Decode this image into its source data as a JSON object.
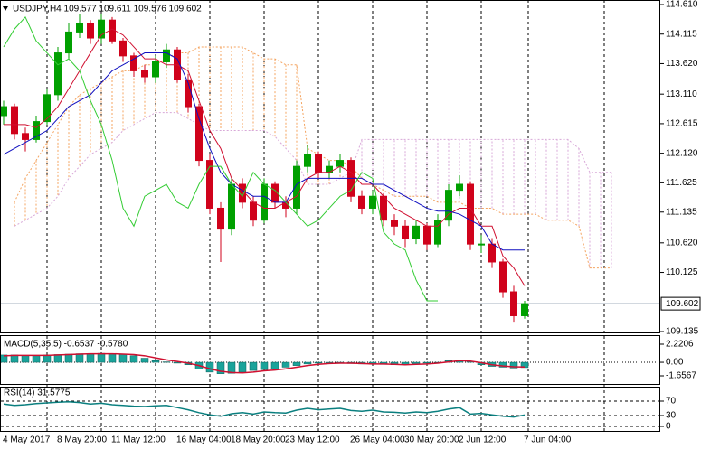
{
  "chart_data": {
    "type": "candlestick",
    "title": "USDJPY,H4  109.577 109.611 109.576 109.602",
    "categories": [
      "4 May 2017",
      null,
      null,
      null,
      null,
      "8 May 20:00",
      null,
      null,
      null,
      null,
      "11 May 12:00",
      null,
      null,
      null,
      null,
      null,
      "16 May 04:00",
      null,
      null,
      null,
      null,
      "18 May 20:00",
      null,
      null,
      null,
      null,
      "23 May 12:00",
      null,
      null,
      null,
      null,
      null,
      "26 May 04:00",
      null,
      null,
      null,
      null,
      "30 May 20:00",
      null,
      null,
      null,
      null,
      "2 Jun 12:00",
      null,
      null,
      null,
      null,
      null,
      "7 Jun 04:00",
      null,
      null,
      null,
      null,
      null,
      null,
      null,
      null
    ],
    "open": [
      112.75,
      112.9,
      112.45,
      112.35,
      112.65,
      113.1,
      113.8,
      114.15,
      114.3,
      114.05,
      114.35,
      114.0,
      113.75,
      113.5,
      113.4,
      113.65,
      113.85,
      113.35,
      112.9,
      112.0,
      111.2,
      110.85,
      111.6,
      111.3,
      111.0,
      111.6,
      111.3,
      111.2,
      111.9,
      112.1,
      111.8,
      111.9,
      112.0,
      111.4,
      111.2,
      111.4,
      111.0,
      110.9,
      110.7,
      110.9,
      110.6,
      111.0,
      111.5,
      111.6,
      110.6,
      110.6,
      110.3,
      109.8,
      109.4,
      null,
      null,
      null,
      null,
      null,
      null,
      null,
      null
    ],
    "high": [
      113.0,
      112.95,
      112.55,
      112.75,
      113.2,
      113.9,
      114.3,
      114.45,
      114.35,
      114.45,
      114.4,
      114.05,
      113.8,
      113.6,
      113.75,
      113.95,
      113.9,
      113.45,
      112.95,
      112.1,
      111.3,
      111.7,
      111.7,
      111.4,
      111.7,
      111.65,
      111.4,
      112.0,
      112.25,
      112.15,
      112.0,
      112.1,
      112.05,
      111.5,
      111.5,
      111.45,
      111.1,
      111.0,
      111.0,
      110.95,
      111.1,
      111.6,
      111.75,
      111.65,
      110.75,
      110.7,
      110.35,
      109.9,
      109.65,
      null,
      null,
      null,
      null,
      null,
      null,
      null,
      null
    ],
    "low": [
      112.6,
      112.35,
      112.15,
      112.3,
      112.6,
      113.0,
      113.7,
      114.05,
      113.95,
      113.95,
      113.95,
      113.65,
      113.4,
      113.3,
      113.3,
      113.55,
      113.3,
      112.8,
      111.9,
      111.1,
      110.3,
      110.75,
      111.2,
      110.9,
      110.95,
      111.2,
      111.05,
      111.1,
      111.8,
      111.7,
      111.7,
      111.8,
      111.3,
      111.1,
      111.1,
      110.9,
      110.75,
      110.55,
      110.6,
      110.5,
      110.55,
      110.9,
      111.4,
      110.5,
      110.45,
      110.2,
      109.7,
      109.3,
      109.35,
      null,
      null,
      null,
      null,
      null,
      null,
      null,
      null
    ],
    "close": [
      112.9,
      112.45,
      112.35,
      112.65,
      113.1,
      113.8,
      114.15,
      114.3,
      114.05,
      114.35,
      114.0,
      113.75,
      113.5,
      113.4,
      113.65,
      113.85,
      113.35,
      112.9,
      112.0,
      111.2,
      110.85,
      111.6,
      111.3,
      111.0,
      111.6,
      111.3,
      111.2,
      111.9,
      112.1,
      111.8,
      111.9,
      112.0,
      111.4,
      111.2,
      111.4,
      111.0,
      110.9,
      110.7,
      110.9,
      110.6,
      111.0,
      111.5,
      111.6,
      110.6,
      110.6,
      110.3,
      109.8,
      109.4,
      109.602,
      null,
      null,
      null,
      null,
      null,
      null,
      null,
      null
    ],
    "up_color": "#00a000",
    "down_color": "#d0021b",
    "ylim": [
      109.135,
      114.61
    ],
    "yticks": [
      {
        "value": 114.61,
        "label": "114.610"
      },
      {
        "value": 114.115,
        "label": "114.115"
      },
      {
        "value": 113.62,
        "label": "113.620"
      },
      {
        "value": 113.11,
        "label": "113.110"
      },
      {
        "value": 112.615,
        "label": "112.615"
      },
      {
        "value": 112.12,
        "label": "112.120"
      },
      {
        "value": 111.625,
        "label": "111.625"
      },
      {
        "value": 111.135,
        "label": "111.135"
      },
      {
        "value": 110.62,
        "label": "110.620"
      },
      {
        "value": 110.125,
        "label": "110.125"
      },
      {
        "value": 109.135,
        "label": "109.135"
      }
    ],
    "last_price": 109.602,
    "lines": [
      {
        "color": "#d01030",
        "values": [
          112.6,
          112.6,
          112.6,
          112.55,
          112.7,
          112.9,
          113.2,
          113.5,
          113.8,
          114.1,
          114.2,
          114.1,
          113.9,
          113.7,
          113.7,
          113.6,
          113.6,
          113.5,
          113.0,
          112.5,
          112.2,
          111.7,
          111.5,
          111.3,
          111.2,
          111.2,
          111.3,
          111.4,
          111.7,
          111.8,
          111.8,
          111.9,
          111.8,
          111.6,
          111.6,
          111.4,
          111.2,
          111.1,
          111.0,
          110.9,
          110.9,
          111.1,
          111.2,
          111.2,
          110.9,
          110.9,
          110.4,
          110.2,
          109.9,
          null,
          null,
          null,
          null,
          null,
          null,
          null,
          null
        ]
      },
      {
        "color": "#1010c0",
        "values": [
          112.1,
          112.2,
          112.3,
          112.4,
          112.5,
          112.7,
          112.9,
          113.0,
          113.1,
          113.3,
          113.5,
          113.6,
          113.7,
          113.8,
          113.8,
          113.8,
          113.7,
          113.3,
          112.7,
          112.2,
          111.8,
          111.6,
          111.5,
          111.4,
          111.4,
          111.3,
          111.3,
          111.6,
          111.7,
          111.7,
          111.7,
          111.7,
          111.7,
          111.7,
          111.6,
          111.6,
          111.5,
          111.4,
          111.3,
          111.2,
          111.15,
          111.15,
          111.1,
          111.0,
          110.9,
          110.6,
          110.5,
          110.5,
          110.5,
          null,
          null,
          null,
          null,
          null,
          null,
          null,
          null
        ]
      },
      {
        "color": "#33cc33",
        "values": [
          113.9,
          114.2,
          114.4,
          114.0,
          113.8,
          113.6,
          113.7,
          113.5,
          113.0,
          112.6,
          112.0,
          111.2,
          110.9,
          111.4,
          111.5,
          111.6,
          111.3,
          111.2,
          111.6,
          111.9,
          111.9,
          111.6,
          111.4,
          111.8,
          111.6,
          111.5,
          111.3,
          111.1,
          110.9,
          111.0,
          111.2,
          111.4,
          111.5,
          111.8,
          111.7,
          110.8,
          110.6,
          110.5,
          110.0,
          109.65,
          109.65,
          null,
          null,
          null,
          null,
          null,
          null,
          null,
          null,
          null,
          null,
          null,
          null,
          null,
          null,
          null,
          null
        ]
      }
    ],
    "cloud": {
      "up_color": "#f4a460",
      "down_color": "#d8a8d8",
      "span_a": [
        null,
        111.3,
        111.7,
        112.0,
        112.3,
        112.6,
        112.9,
        113.1,
        113.2,
        113.3,
        113.4,
        113.5,
        113.5,
        113.6,
        113.6,
        113.7,
        113.8,
        113.8,
        113.9,
        113.9,
        113.9,
        113.9,
        113.9,
        113.8,
        113.7,
        113.7,
        113.6,
        113.6,
        112.2,
        112.1,
        112.0,
        112.0,
        111.9,
        111.7,
        111.6,
        111.5,
        111.4,
        111.4,
        111.4,
        111.4,
        111.3,
        111.3,
        111.3,
        111.2,
        111.2,
        111.2,
        111.1,
        111.1,
        111.1,
        111.1,
        111.0,
        111.0,
        111.0,
        110.9,
        110.2,
        110.2,
        110.2
      ],
      "span_b": [
        null,
        110.9,
        111.0,
        111.1,
        111.2,
        111.4,
        111.7,
        111.9,
        112.1,
        112.2,
        112.3,
        112.5,
        112.6,
        112.7,
        112.8,
        112.8,
        112.8,
        112.7,
        112.6,
        112.5,
        112.5,
        112.5,
        112.5,
        112.5,
        112.5,
        112.4,
        112.2,
        112.0,
        111.6,
        111.6,
        111.6,
        111.7,
        111.8,
        112.35,
        112.35,
        112.35,
        112.35,
        112.35,
        112.35,
        112.35,
        112.35,
        112.35,
        112.35,
        112.35,
        112.35,
        112.35,
        112.35,
        112.35,
        112.35,
        112.35,
        112.35,
        112.35,
        112.35,
        112.2,
        111.8,
        111.8,
        111.8
      ]
    },
    "macd": {
      "label": "MACD(5,35,5) -0.6537 -0.5780",
      "ylim": [
        -1.6567,
        2.2206
      ],
      "yticks": [
        2.2206,
        {
          "value": 0,
          "label": "0.00"
        },
        -1.6567
      ],
      "histogram": {
        "color": "#1aa39a",
        "values": [
          0.9,
          0.9,
          0.85,
          0.85,
          0.9,
          0.95,
          1.0,
          1.05,
          1.05,
          1.1,
          1.05,
          1.0,
          0.8,
          0.5,
          0.2,
          0.05,
          -0.1,
          -0.3,
          -0.8,
          -1.2,
          -1.4,
          -1.35,
          -1.2,
          -1.0,
          -0.9,
          -0.8,
          -0.6,
          -0.4,
          -0.2,
          -0.1,
          -0.1,
          -0.1,
          -0.15,
          -0.2,
          -0.2,
          -0.25,
          -0.3,
          -0.3,
          -0.2,
          -0.1,
          0.0,
          0.2,
          0.3,
          0.1,
          -0.3,
          -0.5,
          -0.6,
          -0.7,
          -0.65,
          null,
          null,
          null,
          null,
          null,
          null,
          null,
          null
        ]
      },
      "signal": {
        "color": "#d01030",
        "values": [
          0.8,
          0.85,
          0.85,
          0.85,
          0.85,
          0.9,
          0.95,
          1.0,
          1.05,
          1.05,
          1.05,
          1.0,
          0.95,
          0.8,
          0.55,
          0.3,
          0.1,
          -0.1,
          -0.4,
          -0.8,
          -1.1,
          -1.25,
          -1.3,
          -1.2,
          -1.05,
          -0.95,
          -0.8,
          -0.6,
          -0.4,
          -0.25,
          -0.15,
          -0.1,
          -0.1,
          -0.15,
          -0.2,
          -0.2,
          -0.25,
          -0.3,
          -0.25,
          -0.2,
          -0.1,
          0.05,
          0.2,
          0.15,
          -0.05,
          -0.3,
          -0.45,
          -0.55,
          -0.58,
          null,
          null,
          null,
          null,
          null,
          null,
          null,
          null
        ]
      }
    },
    "rsi": {
      "label": "RSI(14) 31.5775",
      "ylim": [
        0,
        100
      ],
      "yticks": [
        70,
        30,
        0
      ],
      "color": "#0a7f7f",
      "values": [
        62,
        58,
        60,
        63,
        65,
        67,
        68,
        66,
        62,
        64,
        60,
        58,
        56,
        55,
        57,
        58,
        52,
        46,
        38,
        32,
        28,
        35,
        38,
        34,
        40,
        38,
        37,
        45,
        50,
        46,
        48,
        50,
        44,
        42,
        45,
        40,
        39,
        37,
        40,
        38,
        42,
        48,
        52,
        34,
        36,
        32,
        28,
        26,
        31.5775,
        null,
        null,
        null,
        null,
        null,
        null,
        null,
        null
      ]
    }
  }
}
